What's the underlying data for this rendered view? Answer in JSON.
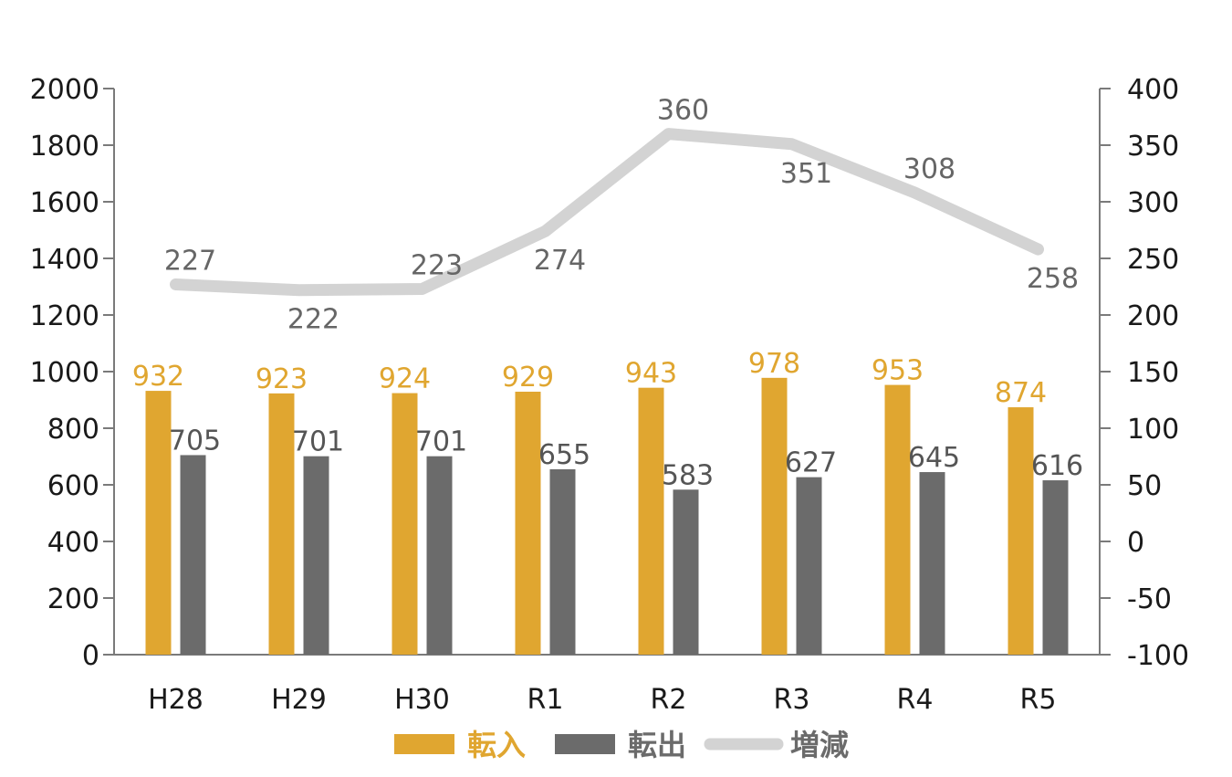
{
  "chart_data": {
    "type": "bar",
    "categories": [
      "H28",
      "H29",
      "H30",
      "R1",
      "R2",
      "R3",
      "R4",
      "R5"
    ],
    "series": [
      {
        "name": "転入",
        "kind": "bar",
        "axis": "left",
        "color": "#e0a630",
        "values": [
          932,
          923,
          924,
          929,
          943,
          978,
          953,
          874
        ]
      },
      {
        "name": "転出",
        "kind": "bar",
        "axis": "left",
        "color": "#6b6b6b",
        "values": [
          705,
          701,
          701,
          655,
          583,
          627,
          645,
          616
        ]
      },
      {
        "name": "増減",
        "kind": "line",
        "axis": "right",
        "color": "#d3d3d3",
        "values": [
          227,
          222,
          223,
          274,
          360,
          351,
          308,
          258
        ]
      }
    ],
    "y_left": {
      "min": 0,
      "max": 2000,
      "ticks": [
        "0",
        "200",
        "400",
        "600",
        "800",
        "1000",
        "1200",
        "1400",
        "1600",
        "1800",
        "2000"
      ]
    },
    "y_right": {
      "min": -100,
      "max": 400,
      "ticks": [
        "-100",
        "-50",
        "0",
        "50",
        "100",
        "150",
        "200",
        "250",
        "300",
        "350",
        "400"
      ]
    },
    "legend": {
      "position": "bottom",
      "items": [
        "転入",
        "転出",
        "増減"
      ]
    },
    "grid": false,
    "title": "",
    "xlabel": "",
    "ylabel": ""
  }
}
